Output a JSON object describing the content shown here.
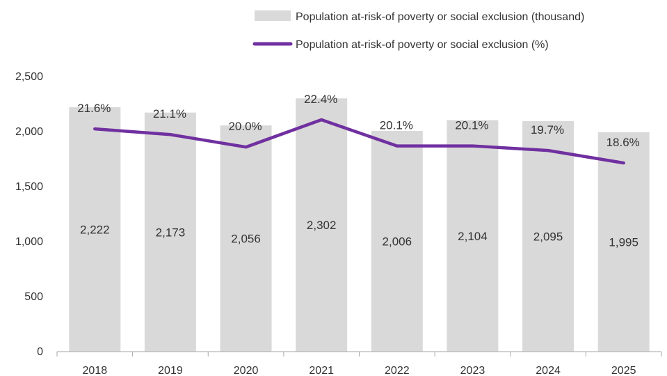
{
  "chart_data": {
    "type": "bar",
    "categories": [
      "2018",
      "2019",
      "2020",
      "2021",
      "2022",
      "2023",
      "2024",
      "2025"
    ],
    "series": [
      {
        "name": "Population at-risk-of poverty or social exclusion (thousand)",
        "type": "bar",
        "axis": "left",
        "values": [
          2222,
          2173,
          2056,
          2302,
          2006,
          2104,
          2095,
          1995
        ],
        "labels": [
          "2,222",
          "2,173",
          "2,056",
          "2,302",
          "2,006",
          "2,104",
          "2,095",
          "1,995"
        ]
      },
      {
        "name": "Population at-risk-of poverty or social exclusion (%)",
        "type": "line",
        "axis": "secondary-hidden",
        "values": [
          21.6,
          21.1,
          20.0,
          22.4,
          20.1,
          20.1,
          19.7,
          18.6
        ],
        "labels": [
          "21.6%",
          "21.1%",
          "20.0%",
          "22.4%",
          "20.1%",
          "20.1%",
          "19.7%",
          "18.6%"
        ]
      }
    ],
    "y_ticks": [
      "0",
      "500",
      "1,000",
      "1,500",
      "2,000",
      "2,500"
    ],
    "y_tick_values": [
      0,
      500,
      1000,
      1500,
      2000,
      2500
    ],
    "ylim": [
      0,
      2500
    ],
    "secondary_ylim_estimate": [
      2,
      26.2
    ],
    "grid": false,
    "legend_position": "top-right",
    "colors": {
      "bar": "#d9d9d9",
      "line": "#7030a0",
      "axis": "#a6a6a6",
      "text": "#333333"
    }
  }
}
